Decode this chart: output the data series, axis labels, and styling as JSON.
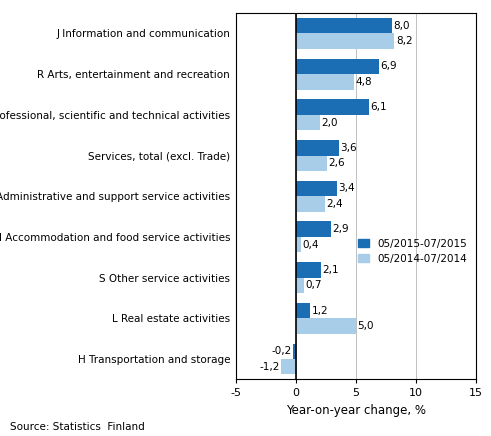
{
  "categories": [
    "J Information and communication",
    "R Arts, entertainment and recreation",
    "M Professional, scientific and technical activities",
    "Services, total (excl. Trade)",
    "N Administrative and support service activities",
    "I Accommodation and food service activities",
    "S Other service activities",
    "L Real estate activities",
    "H Transportation and storage"
  ],
  "series1_label": "05/2015-07/2015",
  "series2_label": "05/2014-07/2014",
  "series1_values": [
    8.0,
    6.9,
    6.1,
    3.6,
    3.4,
    2.9,
    2.1,
    1.2,
    -0.2
  ],
  "series2_values": [
    8.2,
    4.8,
    2.0,
    2.6,
    2.4,
    0.4,
    0.7,
    5.0,
    -1.2
  ],
  "color1": "#1c6eb4",
  "color2": "#a8cde8",
  "xlim": [
    -5,
    15
  ],
  "xticks": [
    -5,
    0,
    5,
    10,
    15
  ],
  "xlabel": "Year-on-year change, %",
  "source": "Source: Statistics  Finland",
  "bar_height": 0.38,
  "grid_color": "#c0c0c0",
  "figsize": [
    4.91,
    4.36
  ],
  "dpi": 100
}
